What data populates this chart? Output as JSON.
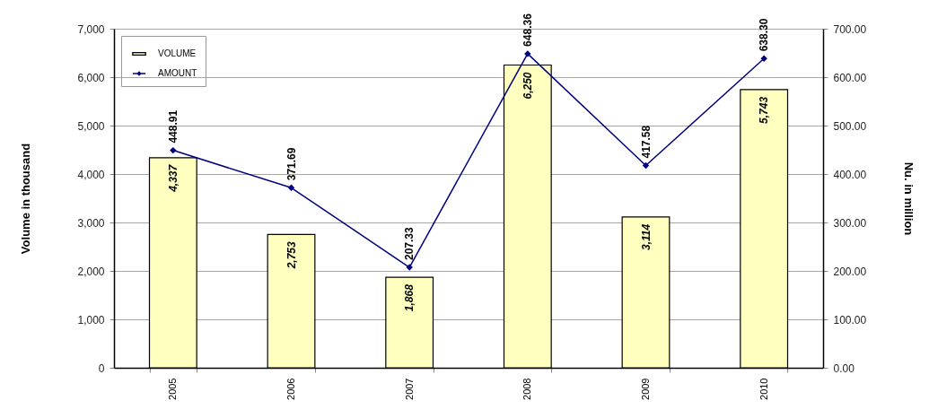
{
  "chart_data": {
    "type": "bar",
    "ylabel": "Volume in thousand",
    "y2label": "Nu. in million",
    "categories": [
      "2005",
      "2006",
      "2007",
      "2008",
      "2009",
      "2010"
    ],
    "series": [
      {
        "name": "VOLUME",
        "color": "#ffffc0",
        "values": [
          4337,
          2753,
          1868,
          6250,
          3114,
          5743
        ],
        "value_labels": [
          "4,337",
          "2,753",
          "1,868",
          "6,250",
          "3,114",
          "5,743"
        ]
      },
      {
        "name": "AMOUNT",
        "type": "line",
        "axis": "y2",
        "color": "#000080",
        "values": [
          448.91,
          371.69,
          207.33,
          648.36,
          417.58,
          638.3
        ],
        "value_labels": [
          "448.91",
          "371.69",
          "207.33",
          "648.36",
          "417.58",
          "638.30"
        ]
      }
    ],
    "ylim": [
      0,
      7000
    ],
    "yticks": [
      0,
      {
        "value": 1000,
        "label": "1,000"
      },
      {
        "value": 2000,
        "label": "2,000"
      },
      {
        "value": 3000,
        "label": "3,000"
      },
      {
        "value": 4000,
        "label": "4,000"
      },
      {
        "value": 5000,
        "label": "5,000"
      },
      {
        "value": 6000,
        "label": "6,000"
      },
      {
        "value": 7000,
        "label": "7,000"
      }
    ],
    "y2lim": [
      0,
      700
    ],
    "y2ticks": [
      {
        "value": 0,
        "label": "0.00"
      },
      {
        "value": 100,
        "label": "100.00"
      },
      {
        "value": 200,
        "label": "200.00"
      },
      {
        "value": 300,
        "label": "300.00"
      },
      {
        "value": 400,
        "label": "400.00"
      },
      {
        "value": 500,
        "label": "500.00"
      },
      {
        "value": 600,
        "label": "600.00"
      },
      {
        "value": 700,
        "label": "700.00"
      }
    ],
    "grid": "y",
    "legend": "top left",
    "marker": "diamond"
  }
}
